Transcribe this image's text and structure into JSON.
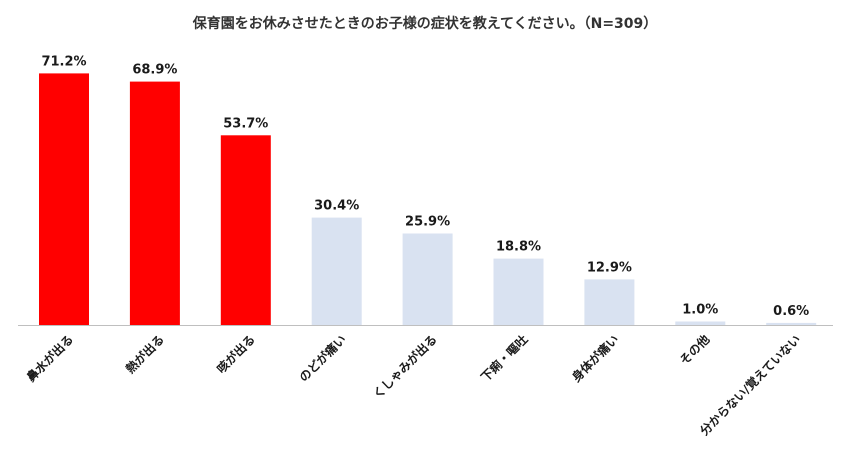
{
  "chart_data": {
    "type": "bar",
    "title": "保育園をお休みさせたときのお子様の症状を教えてください。（N=309）",
    "categories": [
      "鼻水が出る",
      "熱が出る",
      "咳が出る",
      "のどが痛い",
      "くしゃみが出る",
      "下痢・嘔吐",
      "身体が痛い",
      "その他",
      "分からない/覚えていない"
    ],
    "values": [
      71.2,
      68.9,
      53.7,
      30.4,
      25.9,
      18.8,
      12.9,
      1.0,
      0.6
    ],
    "value_labels": [
      "71.2%",
      "68.9%",
      "53.7%",
      "30.4%",
      "25.9%",
      "18.8%",
      "12.9%",
      "1.0%",
      "0.6%"
    ],
    "highlight_count": 3,
    "ylim": [
      0,
      75
    ],
    "grid": false,
    "colors": {
      "highlight": "#ff0000",
      "normal": "#d9e2f1",
      "axis": "#bfbfbf"
    }
  }
}
